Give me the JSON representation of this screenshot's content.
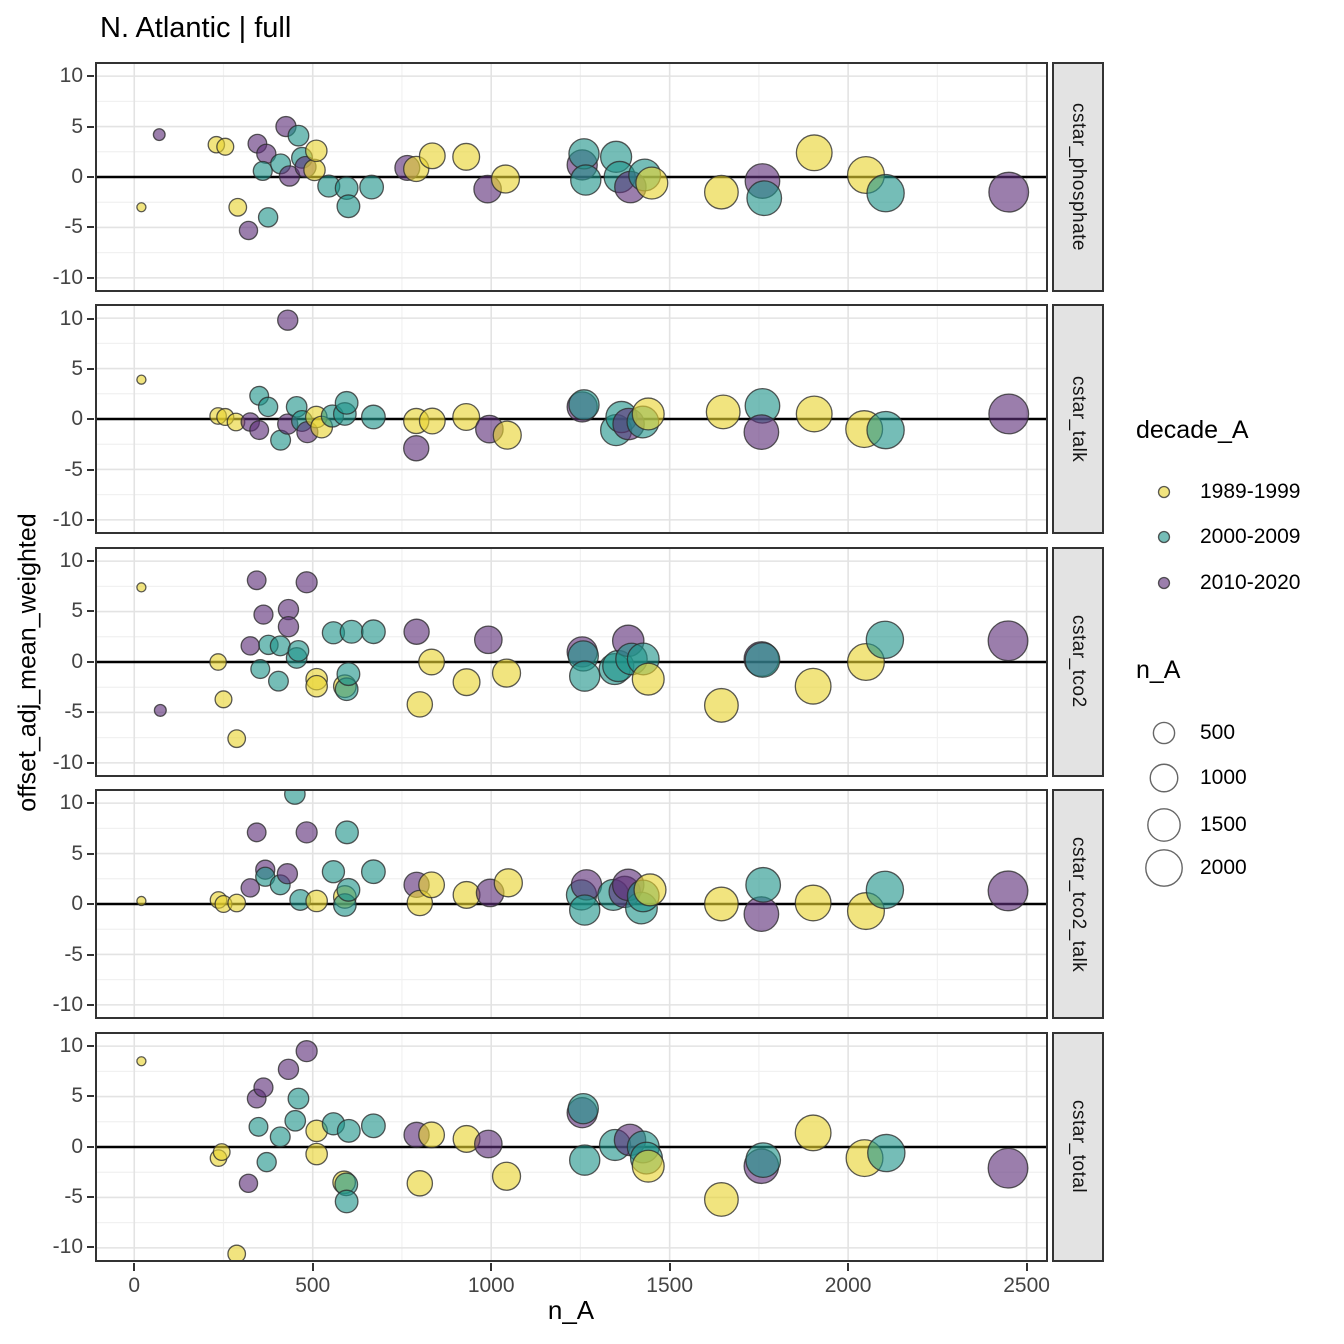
{
  "chart_data": {
    "type": "scatter",
    "title": "N. Atlantic | full",
    "xlabel": "n_A",
    "ylabel": "offset_adj_mean_weighted",
    "xlim": [
      -110,
      2560
    ],
    "ylim": [
      -11.4,
      11.4
    ],
    "x_major_ticks": [
      0,
      500,
      1000,
      1500,
      2000,
      2500
    ],
    "x_minor_ticks": [
      250,
      750,
      1250,
      1750,
      2250
    ],
    "y_major_ticks": [
      10,
      5,
      0,
      -5,
      -10
    ],
    "y_minor_ticks": [
      7.5,
      2.5,
      -2.5,
      -7.5
    ],
    "grid": {
      "major_color": "#e3e3e3",
      "minor_color": "#f1f1f1",
      "zero_line_color": "#000000",
      "panel_border_color": "#333333",
      "panel_bg": "#ffffff",
      "strip_bg": "#e3e3e3"
    },
    "point_style": {
      "fill_opacity": 0.62,
      "stroke_color": "#2b2b2b",
      "stroke_opacity": 0.78,
      "stroke_width": 1.3,
      "size_formula": "r = 3 + 0.34*sqrt(n_A)"
    },
    "color_legend": {
      "title": "decade_A",
      "items": [
        {
          "key": "Y",
          "label": "1989-1999",
          "color": "#e8d430"
        },
        {
          "key": "T",
          "label": "2000-2009",
          "color": "#20948b"
        },
        {
          "key": "P",
          "label": "2010-2020",
          "color": "#5e2f79"
        }
      ]
    },
    "size_legend": {
      "title": "n_A",
      "values": [
        500,
        1000,
        1500,
        2000
      ]
    },
    "facets": [
      {
        "label": "cstar_phosphate",
        "points": [
          [
            20,
            -3.0,
            "Y"
          ],
          [
            70,
            4.2,
            "P"
          ],
          [
            230,
            3.2,
            "Y"
          ],
          [
            255,
            3.0,
            "Y"
          ],
          [
            290,
            -3.0,
            "Y"
          ],
          [
            320,
            -5.3,
            "P"
          ],
          [
            345,
            3.3,
            "P"
          ],
          [
            370,
            2.3,
            "P"
          ],
          [
            360,
            0.6,
            "T"
          ],
          [
            375,
            -4.0,
            "T"
          ],
          [
            410,
            1.3,
            "T"
          ],
          [
            425,
            5.0,
            "P"
          ],
          [
            435,
            0.1,
            "P"
          ],
          [
            460,
            4.1,
            "T"
          ],
          [
            470,
            1.9,
            "T"
          ],
          [
            480,
            1.0,
            "P"
          ],
          [
            505,
            0.7,
            "Y"
          ],
          [
            510,
            2.6,
            "Y"
          ],
          [
            545,
            -0.9,
            "T"
          ],
          [
            595,
            -1.1,
            "T"
          ],
          [
            600,
            -2.9,
            "T"
          ],
          [
            665,
            -1.0,
            "T"
          ],
          [
            765,
            0.9,
            "P"
          ],
          [
            790,
            0.8,
            "Y"
          ],
          [
            835,
            2.1,
            "Y"
          ],
          [
            930,
            2.0,
            "Y"
          ],
          [
            990,
            -1.2,
            "P"
          ],
          [
            1040,
            -0.2,
            "Y"
          ],
          [
            1255,
            1.2,
            "P"
          ],
          [
            1260,
            2.3,
            "T"
          ],
          [
            1265,
            -0.3,
            "T"
          ],
          [
            1350,
            2.0,
            "T"
          ],
          [
            1360,
            0.0,
            "T"
          ],
          [
            1390,
            -1.0,
            "P"
          ],
          [
            1430,
            0.2,
            "T"
          ],
          [
            1450,
            -0.6,
            "Y"
          ],
          [
            1645,
            -1.5,
            "Y"
          ],
          [
            1760,
            -0.4,
            "P"
          ],
          [
            1765,
            -2.1,
            "T"
          ],
          [
            1905,
            2.4,
            "Y"
          ],
          [
            2050,
            0.2,
            "Y"
          ],
          [
            2105,
            -1.6,
            "T"
          ],
          [
            2450,
            -1.5,
            "P"
          ]
        ]
      },
      {
        "label": "cstar_talk",
        "points": [
          [
            20,
            3.9,
            "Y"
          ],
          [
            235,
            0.3,
            "Y"
          ],
          [
            255,
            0.2,
            "Y"
          ],
          [
            285,
            -0.3,
            "Y"
          ],
          [
            325,
            -0.3,
            "P"
          ],
          [
            350,
            -1.1,
            "P"
          ],
          [
            350,
            2.3,
            "T"
          ],
          [
            375,
            1.2,
            "T"
          ],
          [
            410,
            -2.1,
            "T"
          ],
          [
            430,
            9.8,
            "P"
          ],
          [
            430,
            -0.5,
            "P"
          ],
          [
            455,
            1.2,
            "T"
          ],
          [
            470,
            -0.2,
            "T"
          ],
          [
            485,
            -1.3,
            "P"
          ],
          [
            510,
            0.2,
            "Y"
          ],
          [
            525,
            -0.8,
            "Y"
          ],
          [
            555,
            0.3,
            "T"
          ],
          [
            590,
            0.5,
            "T"
          ],
          [
            595,
            1.6,
            "T"
          ],
          [
            670,
            0.2,
            "T"
          ],
          [
            790,
            -0.2,
            "Y"
          ],
          [
            790,
            -2.9,
            "P"
          ],
          [
            835,
            -0.2,
            "Y"
          ],
          [
            930,
            0.2,
            "Y"
          ],
          [
            995,
            -1.0,
            "P"
          ],
          [
            1045,
            -1.6,
            "Y"
          ],
          [
            1255,
            1.2,
            "P"
          ],
          [
            1260,
            1.4,
            "T"
          ],
          [
            1350,
            -1.1,
            "T"
          ],
          [
            1365,
            0.2,
            "T"
          ],
          [
            1385,
            -0.5,
            "P"
          ],
          [
            1425,
            -0.3,
            "T"
          ],
          [
            1440,
            0.5,
            "Y"
          ],
          [
            1650,
            0.7,
            "Y"
          ],
          [
            1760,
            1.3,
            "T"
          ],
          [
            1757,
            -1.3,
            "P"
          ],
          [
            1905,
            0.5,
            "Y"
          ],
          [
            2045,
            -1.0,
            "Y"
          ],
          [
            2105,
            -1.1,
            "T"
          ],
          [
            2450,
            0.5,
            "P"
          ]
        ]
      },
      {
        "label": "cstar_tco2",
        "points": [
          [
            20,
            7.4,
            "Y"
          ],
          [
            73,
            -4.8,
            "P"
          ],
          [
            235,
            0.0,
            "Y"
          ],
          [
            250,
            -3.7,
            "Y"
          ],
          [
            287,
            -7.6,
            "Y"
          ],
          [
            325,
            1.6,
            "P"
          ],
          [
            343,
            8.1,
            "P"
          ],
          [
            353,
            -0.7,
            "T"
          ],
          [
            362,
            4.7,
            "P"
          ],
          [
            376,
            1.7,
            "T"
          ],
          [
            404,
            -1.9,
            "T"
          ],
          [
            409,
            1.6,
            "T"
          ],
          [
            432,
            5.2,
            "P"
          ],
          [
            432,
            3.5,
            "P"
          ],
          [
            455,
            0.4,
            "T"
          ],
          [
            460,
            1.1,
            "T"
          ],
          [
            483,
            7.9,
            "P"
          ],
          [
            511,
            -1.7,
            "Y"
          ],
          [
            511,
            -2.4,
            "Y"
          ],
          [
            558,
            2.9,
            "T"
          ],
          [
            590,
            -2.4,
            "Y"
          ],
          [
            595,
            -2.7,
            "T"
          ],
          [
            600,
            -1.2,
            "T"
          ],
          [
            609,
            3.0,
            "T"
          ],
          [
            670,
            3.0,
            "T"
          ],
          [
            791,
            3.0,
            "P"
          ],
          [
            800,
            -4.2,
            "Y"
          ],
          [
            833,
            0.0,
            "Y"
          ],
          [
            931,
            -2.0,
            "Y"
          ],
          [
            992,
            2.2,
            "P"
          ],
          [
            1043,
            -1.1,
            "Y"
          ],
          [
            1255,
            1.0,
            "P"
          ],
          [
            1258,
            0.6,
            "T"
          ],
          [
            1262,
            -1.4,
            "T"
          ],
          [
            1346,
            -0.7,
            "T"
          ],
          [
            1356,
            -0.4,
            "T"
          ],
          [
            1384,
            2.1,
            "P"
          ],
          [
            1393,
            0.3,
            "T"
          ],
          [
            1426,
            0.3,
            "T"
          ],
          [
            1440,
            -1.7,
            "Y"
          ],
          [
            1645,
            -4.3,
            "Y"
          ],
          [
            1757,
            0.3,
            "P"
          ],
          [
            1760,
            0.2,
            "T"
          ],
          [
            1902,
            -2.4,
            "Y"
          ],
          [
            2050,
            0.0,
            "Y"
          ],
          [
            2103,
            2.2,
            "T"
          ],
          [
            2448,
            2.1,
            "P"
          ]
        ]
      },
      {
        "label": "cstar_tco2_talk",
        "points": [
          [
            20,
            0.3,
            "Y"
          ],
          [
            236,
            0.4,
            "Y"
          ],
          [
            250,
            0.0,
            "Y"
          ],
          [
            287,
            0.1,
            "Y"
          ],
          [
            325,
            1.6,
            "P"
          ],
          [
            343,
            7.1,
            "P"
          ],
          [
            367,
            3.4,
            "P"
          ],
          [
            367,
            2.7,
            "T"
          ],
          [
            409,
            1.9,
            "T"
          ],
          [
            429,
            3.0,
            "P"
          ],
          [
            450,
            10.9,
            "T"
          ],
          [
            465,
            0.4,
            "T"
          ],
          [
            483,
            7.1,
            "P"
          ],
          [
            511,
            0.3,
            "Y"
          ],
          [
            558,
            3.2,
            "T"
          ],
          [
            590,
            0.7,
            "Y"
          ],
          [
            590,
            -0.1,
            "T"
          ],
          [
            596,
            7.1,
            "T"
          ],
          [
            600,
            1.4,
            "T"
          ],
          [
            670,
            3.2,
            "T"
          ],
          [
            791,
            1.9,
            "P"
          ],
          [
            800,
            0.1,
            "Y"
          ],
          [
            833,
            1.9,
            "Y"
          ],
          [
            931,
            0.9,
            "Y"
          ],
          [
            997,
            1.1,
            "P"
          ],
          [
            1048,
            2.1,
            "Y"
          ],
          [
            1253,
            0.9,
            "T"
          ],
          [
            1267,
            1.9,
            "P"
          ],
          [
            1262,
            -0.6,
            "T"
          ],
          [
            1342,
            0.9,
            "T"
          ],
          [
            1374,
            1.2,
            "P"
          ],
          [
            1384,
            1.9,
            "P"
          ],
          [
            1421,
            -0.4,
            "T"
          ],
          [
            1426,
            0.8,
            "T"
          ],
          [
            1445,
            1.4,
            "Y"
          ],
          [
            1645,
            0.0,
            "Y"
          ],
          [
            1757,
            -1.0,
            "P"
          ],
          [
            1762,
            1.9,
            "T"
          ],
          [
            1902,
            0.1,
            "Y"
          ],
          [
            2050,
            -0.7,
            "Y"
          ],
          [
            2103,
            1.4,
            "T"
          ],
          [
            2448,
            1.3,
            "P"
          ]
        ]
      },
      {
        "label": "cstar_total",
        "points": [
          [
            20,
            8.5,
            "Y"
          ],
          [
            236,
            -1.1,
            "Y"
          ],
          [
            245,
            -0.5,
            "Y"
          ],
          [
            287,
            -10.6,
            "Y"
          ],
          [
            320,
            -3.6,
            "P"
          ],
          [
            343,
            4.8,
            "P"
          ],
          [
            348,
            2.0,
            "T"
          ],
          [
            362,
            5.9,
            "P"
          ],
          [
            371,
            -1.5,
            "T"
          ],
          [
            409,
            1.0,
            "T"
          ],
          [
            432,
            7.7,
            "P"
          ],
          [
            451,
            2.6,
            "T"
          ],
          [
            460,
            4.8,
            "T"
          ],
          [
            483,
            9.5,
            "P"
          ],
          [
            511,
            1.6,
            "Y"
          ],
          [
            511,
            -0.7,
            "Y"
          ],
          [
            558,
            2.3,
            "T"
          ],
          [
            588,
            -3.5,
            "Y"
          ],
          [
            594,
            -3.7,
            "T"
          ],
          [
            595,
            -5.4,
            "T"
          ],
          [
            601,
            1.6,
            "T"
          ],
          [
            670,
            2.1,
            "T"
          ],
          [
            791,
            1.2,
            "P"
          ],
          [
            800,
            -3.6,
            "Y"
          ],
          [
            833,
            1.2,
            "Y"
          ],
          [
            931,
            0.8,
            "Y"
          ],
          [
            992,
            0.3,
            "P"
          ],
          [
            1043,
            -2.9,
            "Y"
          ],
          [
            1255,
            3.4,
            "P"
          ],
          [
            1258,
            3.8,
            "T"
          ],
          [
            1262,
            -1.3,
            "T"
          ],
          [
            1347,
            0.2,
            "T"
          ],
          [
            1389,
            0.7,
            "P"
          ],
          [
            1426,
            0.0,
            "T"
          ],
          [
            1435,
            -1.1,
            "T"
          ],
          [
            1440,
            -1.9,
            "Y"
          ],
          [
            1645,
            -5.2,
            "Y"
          ],
          [
            1757,
            -1.9,
            "P"
          ],
          [
            1762,
            -1.3,
            "T"
          ],
          [
            1902,
            1.4,
            "Y"
          ],
          [
            2046,
            -1.1,
            "Y"
          ],
          [
            2107,
            -0.6,
            "T"
          ],
          [
            2448,
            -2.1,
            "P"
          ]
        ]
      }
    ]
  }
}
